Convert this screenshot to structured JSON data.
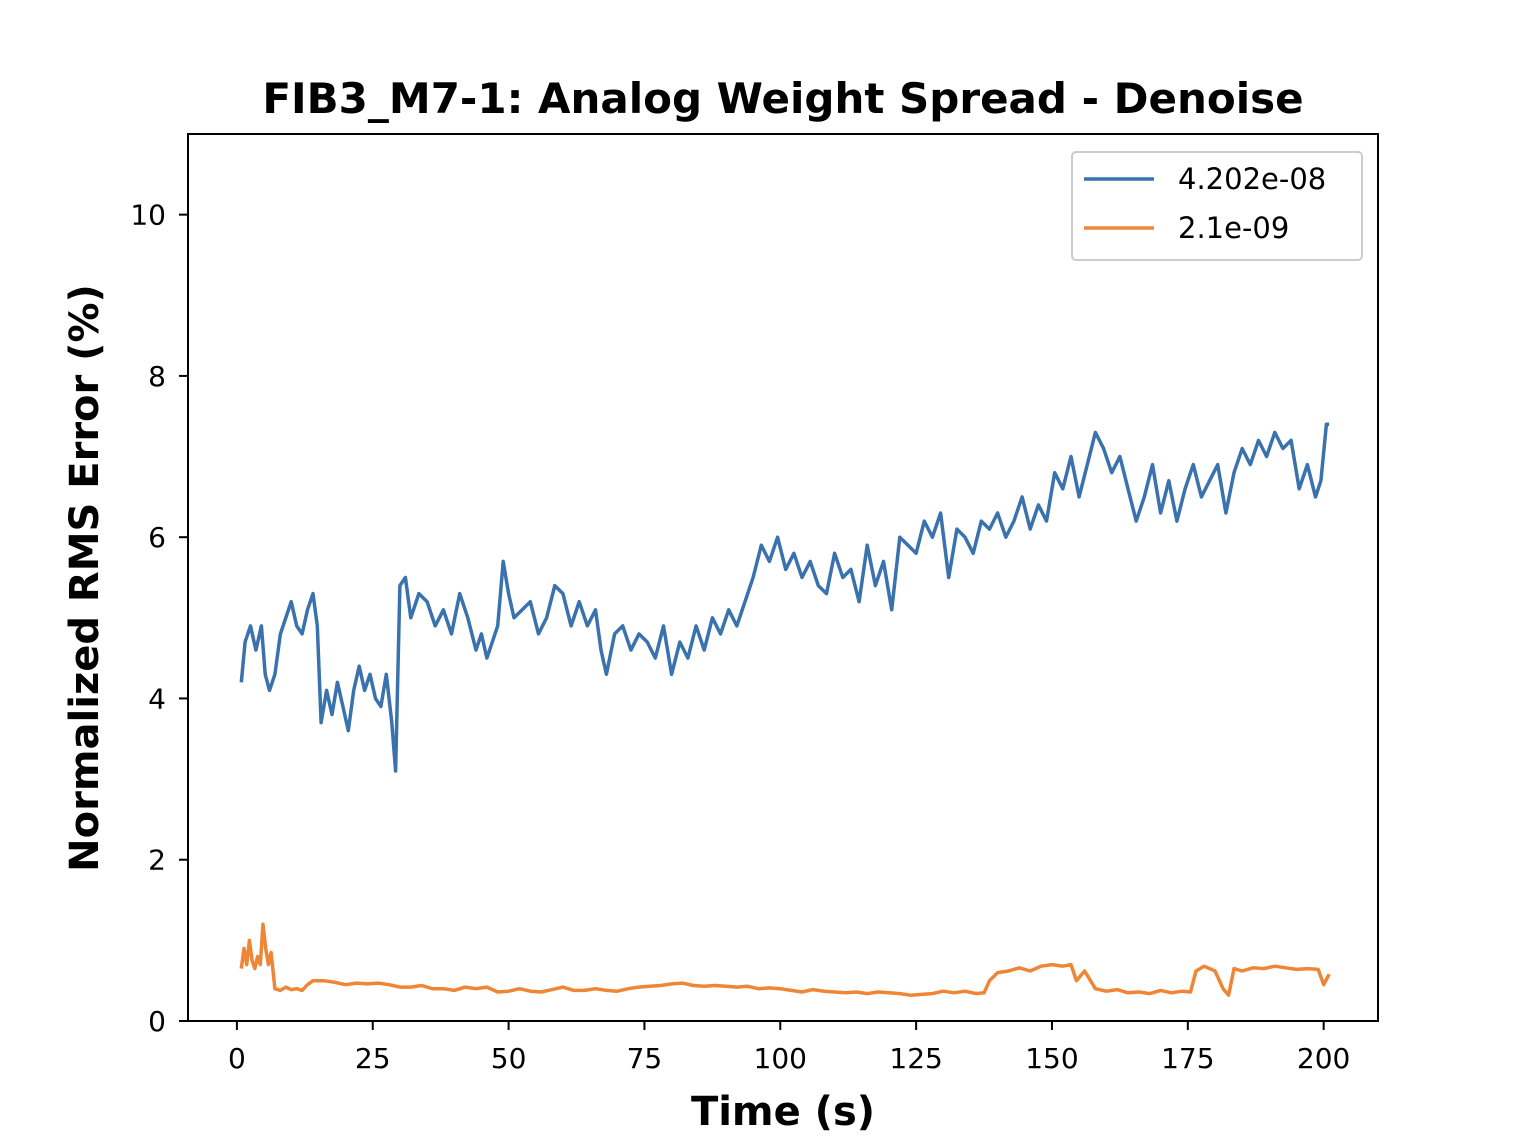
{
  "chart_data": {
    "type": "line",
    "title": "FIB3_M7-1: Analog Weight Spread - Denoise",
    "xlabel": "Time (s)",
    "ylabel": "Normalized RMS Error (%)",
    "xlim": [
      -9.0,
      210.0
    ],
    "ylim": [
      0,
      11.0
    ],
    "xticks": [
      0,
      25,
      50,
      75,
      100,
      125,
      150,
      175,
      200
    ],
    "yticks": [
      0,
      2,
      4,
      6,
      8,
      10
    ],
    "grid": false,
    "legend_position": "top-right",
    "series": [
      {
        "name": "4.202e-08",
        "color": "#3a72ae",
        "x": [
          0.8,
          1.5,
          2.5,
          3.5,
          4.5,
          5.2,
          6.0,
          7.0,
          8.0,
          9.0,
          10.0,
          11.0,
          12.0,
          13.0,
          14.0,
          14.8,
          15.5,
          16.5,
          17.5,
          18.5,
          19.5,
          20.5,
          21.5,
          22.5,
          23.5,
          24.5,
          25.5,
          26.5,
          27.5,
          28.5,
          29.2,
          30.0,
          31.0,
          32.0,
          33.5,
          35.0,
          36.5,
          38.0,
          39.5,
          41.0,
          42.5,
          44.0,
          45.0,
          46.0,
          47.0,
          48.0,
          49.0,
          50.0,
          51.0,
          52.5,
          54.0,
          55.5,
          57.0,
          58.5,
          60.0,
          61.5,
          63.0,
          64.5,
          66.0,
          67.0,
          68.0,
          69.5,
          71.0,
          72.5,
          74.0,
          75.5,
          77.0,
          78.5,
          80.0,
          81.5,
          83.0,
          84.5,
          86.0,
          87.5,
          89.0,
          90.5,
          92.0,
          93.5,
          95.0,
          96.5,
          98.0,
          99.5,
          101.0,
          102.5,
          104.0,
          105.5,
          107.0,
          108.5,
          110.0,
          111.5,
          113.0,
          114.5,
          116.0,
          117.5,
          119.0,
          120.5,
          122.0,
          123.5,
          125.0,
          126.5,
          128.0,
          129.5,
          131.0,
          132.5,
          134.0,
          135.5,
          137.0,
          138.5,
          140.0,
          141.5,
          143.0,
          144.5,
          146.0,
          147.5,
          149.0,
          150.5,
          152.0,
          153.5,
          155.0,
          156.5,
          158.0,
          159.5,
          161.0,
          162.5,
          164.0,
          165.5,
          167.0,
          168.5,
          170.0,
          171.5,
          173.0,
          174.5,
          176.0,
          177.5,
          179.0,
          180.5,
          182.0,
          183.5,
          185.0,
          186.5,
          188.0,
          189.5,
          191.0,
          192.5,
          194.0,
          195.5,
          197.0,
          198.5,
          199.5,
          200.5,
          201.0
        ],
        "y": [
          4.2,
          4.7,
          4.9,
          4.6,
          4.9,
          4.3,
          4.1,
          4.3,
          4.8,
          5.0,
          5.2,
          4.9,
          4.8,
          5.1,
          5.3,
          4.9,
          3.7,
          4.1,
          3.8,
          4.2,
          3.9,
          3.6,
          4.1,
          4.4,
          4.1,
          4.3,
          4.0,
          3.9,
          4.3,
          3.7,
          3.1,
          5.4,
          5.5,
          5.0,
          5.3,
          5.2,
          4.9,
          5.1,
          4.8,
          5.3,
          5.0,
          4.6,
          4.8,
          4.5,
          4.7,
          4.9,
          5.7,
          5.3,
          5.0,
          5.1,
          5.2,
          4.8,
          5.0,
          5.4,
          5.3,
          4.9,
          5.2,
          4.9,
          5.1,
          4.6,
          4.3,
          4.8,
          4.9,
          4.6,
          4.8,
          4.7,
          4.5,
          4.9,
          4.3,
          4.7,
          4.5,
          4.9,
          4.6,
          5.0,
          4.8,
          5.1,
          4.9,
          5.2,
          5.5,
          5.9,
          5.7,
          6.0,
          5.6,
          5.8,
          5.5,
          5.7,
          5.4,
          5.3,
          5.8,
          5.5,
          5.6,
          5.2,
          5.9,
          5.4,
          5.7,
          5.1,
          6.0,
          5.9,
          5.8,
          6.2,
          6.0,
          6.3,
          5.5,
          6.1,
          6.0,
          5.8,
          6.2,
          6.1,
          6.3,
          6.0,
          6.2,
          6.5,
          6.1,
          6.4,
          6.2,
          6.8,
          6.6,
          7.0,
          6.5,
          6.9,
          7.3,
          7.1,
          6.8,
          7.0,
          6.6,
          6.2,
          6.5,
          6.9,
          6.3,
          6.7,
          6.2,
          6.6,
          6.9,
          6.5,
          6.7,
          6.9,
          6.3,
          6.8,
          7.1,
          6.9,
          7.2,
          7.0,
          7.3,
          7.1,
          7.2,
          6.6,
          6.9,
          6.5,
          6.7,
          7.4,
          7.4
        ]
      },
      {
        "name": "2.1e-09",
        "color": "#ef8636",
        "x": [
          0.8,
          1.3,
          1.8,
          2.3,
          2.8,
          3.3,
          3.8,
          4.3,
          4.8,
          5.3,
          5.8,
          6.3,
          7.0,
          8.0,
          9.0,
          10.0,
          11.0,
          12.0,
          13.0,
          14.0,
          16.0,
          18.0,
          20.0,
          22.0,
          24.0,
          26.0,
          28.0,
          30.0,
          32.0,
          34.0,
          36.0,
          38.0,
          40.0,
          42.0,
          44.0,
          46.0,
          48.0,
          50.0,
          52.0,
          54.0,
          56.0,
          58.0,
          60.0,
          62.0,
          64.0,
          66.0,
          68.0,
          70.0,
          72.0,
          74.0,
          76.0,
          78.0,
          80.0,
          82.0,
          84.0,
          86.0,
          88.0,
          90.0,
          92.0,
          94.0,
          96.0,
          98.0,
          100.0,
          102.0,
          104.0,
          106.0,
          108.0,
          110.0,
          112.0,
          114.0,
          116.0,
          118.0,
          120.0,
          122.0,
          124.0,
          126.0,
          128.0,
          130.0,
          132.0,
          134.0,
          136.0,
          137.5,
          138.5,
          140.0,
          142.0,
          144.0,
          146.0,
          148.0,
          150.0,
          152.0,
          153.5,
          154.5,
          156.0,
          158.0,
          160.0,
          162.0,
          164.0,
          166.0,
          168.0,
          170.0,
          172.0,
          174.0,
          175.5,
          176.5,
          178.0,
          180.0,
          181.5,
          182.5,
          183.5,
          185.0,
          187.0,
          189.0,
          191.0,
          193.0,
          195.0,
          197.0,
          199.0,
          200.0,
          201.0
        ],
        "y": [
          0.65,
          0.9,
          0.7,
          1.0,
          0.75,
          0.65,
          0.8,
          0.7,
          1.2,
          0.9,
          0.7,
          0.85,
          0.4,
          0.38,
          0.42,
          0.39,
          0.4,
          0.38,
          0.45,
          0.5,
          0.5,
          0.48,
          0.45,
          0.47,
          0.46,
          0.47,
          0.45,
          0.42,
          0.42,
          0.44,
          0.4,
          0.4,
          0.38,
          0.42,
          0.4,
          0.42,
          0.36,
          0.37,
          0.4,
          0.37,
          0.36,
          0.39,
          0.42,
          0.38,
          0.38,
          0.4,
          0.38,
          0.37,
          0.4,
          0.42,
          0.43,
          0.44,
          0.46,
          0.47,
          0.44,
          0.43,
          0.44,
          0.43,
          0.42,
          0.43,
          0.4,
          0.41,
          0.4,
          0.38,
          0.36,
          0.39,
          0.37,
          0.36,
          0.35,
          0.36,
          0.34,
          0.36,
          0.35,
          0.34,
          0.32,
          0.33,
          0.34,
          0.37,
          0.35,
          0.37,
          0.34,
          0.35,
          0.5,
          0.6,
          0.62,
          0.66,
          0.62,
          0.68,
          0.7,
          0.68,
          0.7,
          0.5,
          0.62,
          0.4,
          0.37,
          0.39,
          0.35,
          0.36,
          0.34,
          0.38,
          0.35,
          0.37,
          0.36,
          0.62,
          0.68,
          0.62,
          0.4,
          0.32,
          0.65,
          0.62,
          0.66,
          0.65,
          0.68,
          0.66,
          0.64,
          0.65,
          0.64,
          0.45,
          0.58
        ]
      }
    ]
  }
}
